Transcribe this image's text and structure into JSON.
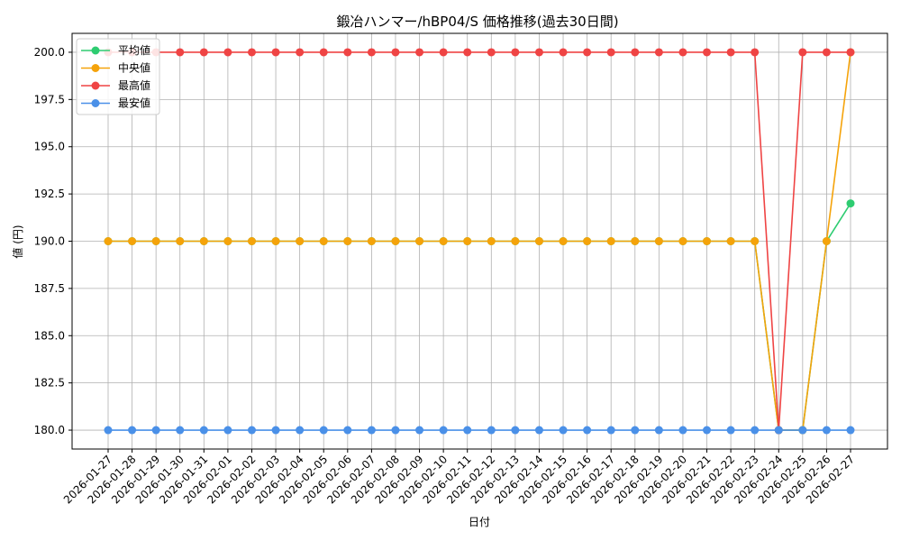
{
  "chart_data": {
    "type": "line",
    "title": "鍛冶ハンマー/hBP04/S 価格推移(過去30日間)",
    "xlabel": "日付",
    "ylabel": "値 (円)",
    "ylim": [
      179.0,
      201.0
    ],
    "yticks": [
      "180.0",
      "182.5",
      "185.0",
      "187.5",
      "190.0",
      "192.5",
      "195.0",
      "197.5",
      "200.0"
    ],
    "yticks_values": [
      180.0,
      182.5,
      185.0,
      187.5,
      190.0,
      192.5,
      195.0,
      197.5,
      200.0
    ],
    "grid": true,
    "legend_position": "top-left",
    "categories": [
      "2026-01-27",
      "2026-01-28",
      "2026-01-29",
      "2026-01-30",
      "2026-01-31",
      "2026-02-01",
      "2026-02-02",
      "2026-02-03",
      "2026-02-04",
      "2026-02-05",
      "2026-02-06",
      "2026-02-07",
      "2026-02-08",
      "2026-02-09",
      "2026-02-10",
      "2026-02-11",
      "2026-02-12",
      "2026-02-13",
      "2026-02-14",
      "2026-02-15",
      "2026-02-16",
      "2026-02-17",
      "2026-02-18",
      "2026-02-19",
      "2026-02-20",
      "2026-02-21",
      "2026-02-22",
      "2026-02-23",
      "2026-02-24",
      "2026-02-25",
      "2026-02-26",
      "2026-02-27"
    ],
    "series": [
      {
        "name": "平均値",
        "color": "#2ecc71",
        "values": [
          190,
          190,
          190,
          190,
          190,
          190,
          190,
          190,
          190,
          190,
          190,
          190,
          190,
          190,
          190,
          190,
          190,
          190,
          190,
          190,
          190,
          190,
          190,
          190,
          190,
          190,
          190,
          190,
          180,
          180,
          190,
          192
        ]
      },
      {
        "name": "中央値",
        "color": "#f5a30a",
        "values": [
          190,
          190,
          190,
          190,
          190,
          190,
          190,
          190,
          190,
          190,
          190,
          190,
          190,
          190,
          190,
          190,
          190,
          190,
          190,
          190,
          190,
          190,
          190,
          190,
          190,
          190,
          190,
          190,
          180,
          180,
          190,
          200
        ]
      },
      {
        "name": "最高値",
        "color": "#ef4444",
        "values": [
          200,
          200,
          200,
          200,
          200,
          200,
          200,
          200,
          200,
          200,
          200,
          200,
          200,
          200,
          200,
          200,
          200,
          200,
          200,
          200,
          200,
          200,
          200,
          200,
          200,
          200,
          200,
          200,
          180,
          200,
          200,
          200
        ]
      },
      {
        "name": "最安値",
        "color": "#4a90e8",
        "values": [
          180,
          180,
          180,
          180,
          180,
          180,
          180,
          180,
          180,
          180,
          180,
          180,
          180,
          180,
          180,
          180,
          180,
          180,
          180,
          180,
          180,
          180,
          180,
          180,
          180,
          180,
          180,
          180,
          180,
          180,
          180,
          180
        ]
      }
    ]
  }
}
